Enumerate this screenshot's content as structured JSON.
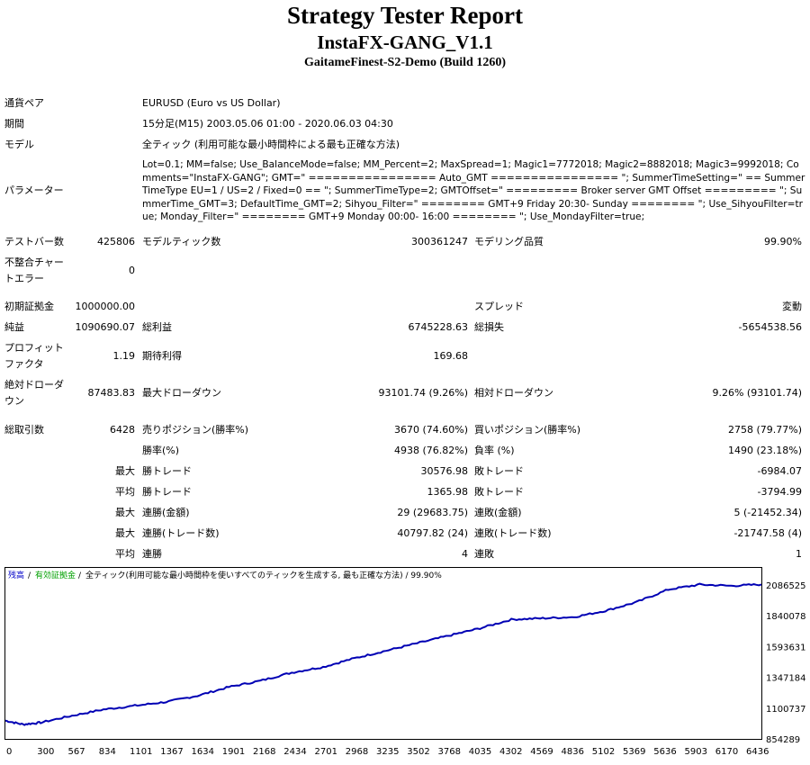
{
  "header": {
    "title": "Strategy Tester Report",
    "ea_name": "InstaFX-GANG_V1.1",
    "server": "GaitameFinest-S2-Demo (Build 1260)"
  },
  "info": {
    "symbol_label": "通貨ペア",
    "symbol_value": "EURUSD (Euro vs US Dollar)",
    "period_label": "期間",
    "period_value": "15分足(M15) 2003.05.06 01:00 - 2020.06.03 04:30",
    "model_label": "モデル",
    "model_value": "全ティック (利用可能な最小時間枠による最も正確な方法)",
    "params_label": "パラメーター",
    "params_value": "Lot=0.1; MM=false; Use_BalanceMode=false; MM_Percent=2; MaxSpread=1; Magic1=7772018; Magic2=8882018; Magic3=9992018; Comments=\"InstaFX-GANG\"; GMT=\" ================ Auto_GMT ================ \"; SummerTimeSetting=\" == SummerTimeType EU=1 / US=2 / Fixed=0 == \"; SummerTimeType=2; GMTOffset=\" ========= Broker server GMT Offset ========= \"; SummerTime_GMT=3; DefaultTime_GMT=2; Sihyou_Filter=\" ======== GMT+9 Friday 20:30- Sunday ======== \"; Use_SihyouFilter=true; Monday_Filter=\" ======== GMT+9 Monday 00:00- 16:00 ======== \"; Use_MondayFilter=true;"
  },
  "stats": {
    "bars_label": "テストバー数",
    "bars_value": "425806",
    "ticks_label": "モデルティック数",
    "ticks_value": "300361247",
    "quality_label": "モデリング品質",
    "quality_value": "99.90%",
    "mismatch_label_1": "不整合チャー",
    "mismatch_label_2": "トエラー",
    "mismatch_value": "0",
    "deposit_label": "初期証拠金",
    "deposit_value": "1000000.00",
    "spread_label": "スプレッド",
    "spread_value": "変動",
    "net_label": "純益",
    "net_value": "1090690.07",
    "gross_profit_label": "総利益",
    "gross_profit_value": "6745228.63",
    "gross_loss_label": "総損失",
    "gross_loss_value": "-5654538.56",
    "pf_label_1": "プロフィット",
    "pf_label_2": "ファクタ",
    "pf_value": "1.19",
    "expected_label": "期待利得",
    "expected_value": "169.68",
    "abs_dd_label_1": "絶対ドローダ",
    "abs_dd_label_2": "ウン",
    "abs_dd_value": "87483.83",
    "max_dd_label": "最大ドローダウン",
    "max_dd_value": "93101.74 (9.26%)",
    "rel_dd_label": "相対ドローダウン",
    "rel_dd_value": "9.26% (93101.74)",
    "total_trades_label": "総取引数",
    "total_trades_value": "6428",
    "short_label": "売りポジション(勝率%)",
    "short_value": "3670 (74.60%)",
    "long_label": "買いポジション(勝率%)",
    "long_value": "2758 (79.77%)",
    "win_rate_label": "勝率(%)",
    "win_rate_value": "4938 (76.82%)",
    "loss_rate_label": "負率 (%)",
    "loss_rate_value": "1490 (23.18%)",
    "max_label": "最大",
    "avg_label": "平均",
    "largest_win_label": "勝トレード",
    "largest_win_value": "30576.98",
    "largest_loss_label": "敗トレード",
    "largest_loss_value": "-6984.07",
    "avg_win_label": "勝トレード",
    "avg_win_value": "1365.98",
    "avg_loss_label": "敗トレード",
    "avg_loss_value": "-3794.99",
    "max_consec_wins_label": "連勝(金額)",
    "max_consec_wins_value": "29 (29683.75)",
    "max_consec_losses_label": "連敗(金額)",
    "max_consec_losses_value": "5 (-21452.34)",
    "max_consec_profit_label": "連勝(トレード数)",
    "max_consec_profit_value": "40797.82 (24)",
    "max_consec_loss_label": "連敗(トレード数)",
    "max_consec_loss_value": "-21747.58 (4)",
    "avg_consec_wins_label": "連勝",
    "avg_consec_wins_value": "4",
    "avg_consec_losses_label": "連敗",
    "avg_consec_losses_value": "1"
  },
  "chart_legend": {
    "balance": "残高",
    "separator1": " / ",
    "equity": "有効証拠金",
    "separator2": " / ",
    "model": "全ティック(利用可能な最小時間枠を使いすべてのティックを生成する, 最も正確な方法) / 99.90%",
    "balance_color": "#0000c8",
    "equity_color": "#00a000"
  },
  "chart_data": {
    "type": "line",
    "title": "",
    "x_ticks": [
      "0",
      "300",
      "567",
      "834",
      "1101",
      "1367",
      "1634",
      "1901",
      "2168",
      "2434",
      "2701",
      "2968",
      "3235",
      "3502",
      "3768",
      "4035",
      "4302",
      "4569",
      "4836",
      "5102",
      "5369",
      "5636",
      "5903",
      "6170",
      "6436"
    ],
    "y_ticks": [
      "2086525",
      "1840078",
      "1593631",
      "1347184",
      "1100737",
      "854289"
    ],
    "ylim": [
      854289,
      2086525
    ],
    "xlim": [
      0,
      6428
    ],
    "series": [
      {
        "color": "#0000b4",
        "points": [
          [
            0,
            1000000
          ],
          [
            150,
            970000
          ],
          [
            300,
            985000
          ],
          [
            567,
            1040000
          ],
          [
            834,
            1090000
          ],
          [
            1101,
            1120000
          ],
          [
            1367,
            1150000
          ],
          [
            1634,
            1200000
          ],
          [
            1901,
            1270000
          ],
          [
            2168,
            1320000
          ],
          [
            2434,
            1385000
          ],
          [
            2701,
            1430000
          ],
          [
            2968,
            1500000
          ],
          [
            3235,
            1560000
          ],
          [
            3502,
            1620000
          ],
          [
            3768,
            1680000
          ],
          [
            4035,
            1740000
          ],
          [
            4302,
            1810000
          ],
          [
            4569,
            1820000
          ],
          [
            4836,
            1830000
          ],
          [
            5102,
            1880000
          ],
          [
            5369,
            1950000
          ],
          [
            5636,
            2050000
          ],
          [
            5903,
            2090000
          ],
          [
            6170,
            2080000
          ],
          [
            6428,
            2090690
          ]
        ]
      }
    ]
  }
}
